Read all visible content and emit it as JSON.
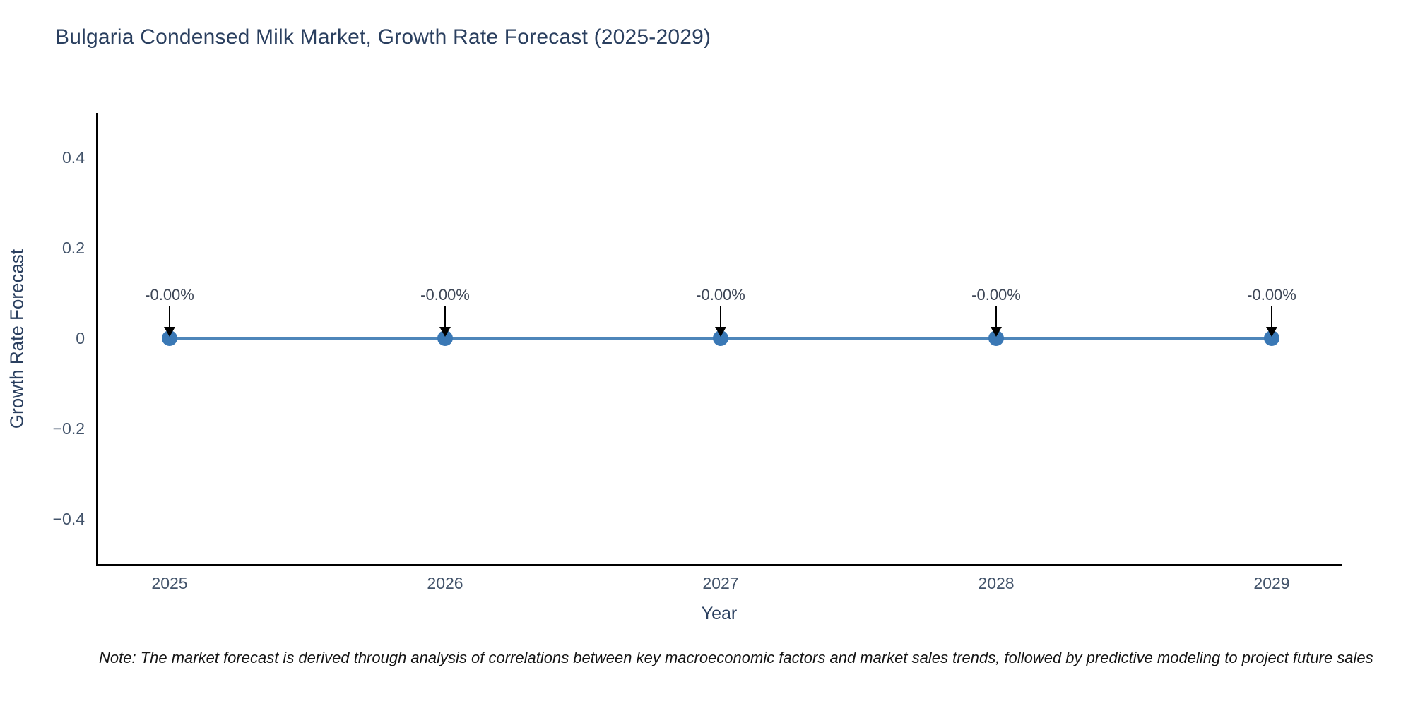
{
  "chart": {
    "title": "Bulgaria Condensed Milk Market, Growth Rate Forecast (2025-2029)",
    "xlabel": "Year",
    "ylabel": "Growth Rate Forecast",
    "note": "Note: The market forecast is derived through analysis of correlations between key macroeconomic factors and market sales trends, followed by predictive modeling to project future sales"
  },
  "chart_data": {
    "type": "line",
    "title": "Bulgaria Condensed Milk Market, Growth Rate Forecast (2025-2029)",
    "xlabel": "Year",
    "ylabel": "Growth Rate Forecast",
    "x": [
      2025,
      2026,
      2027,
      2028,
      2029
    ],
    "values": [
      0,
      0,
      0,
      0,
      0
    ],
    "point_labels": [
      "-0.00%",
      "-0.00%",
      "-0.00%",
      "-0.00%",
      "-0.00%"
    ],
    "xtick_labels": [
      "2025",
      "2026",
      "2027",
      "2028",
      "2029"
    ],
    "yticks": [
      0.4,
      0.2,
      0,
      -0.2,
      -0.4
    ],
    "ytick_labels": [
      "0.4",
      "0.2",
      "0",
      "−0.2",
      "−0.4"
    ],
    "ylim": [
      -0.5,
      0.5
    ],
    "grid": false,
    "legend_position": "none",
    "line_color": "#4e86ba",
    "marker_color": "#3a78b5",
    "arrow_color": "#000000",
    "axis_color": "#000000"
  }
}
